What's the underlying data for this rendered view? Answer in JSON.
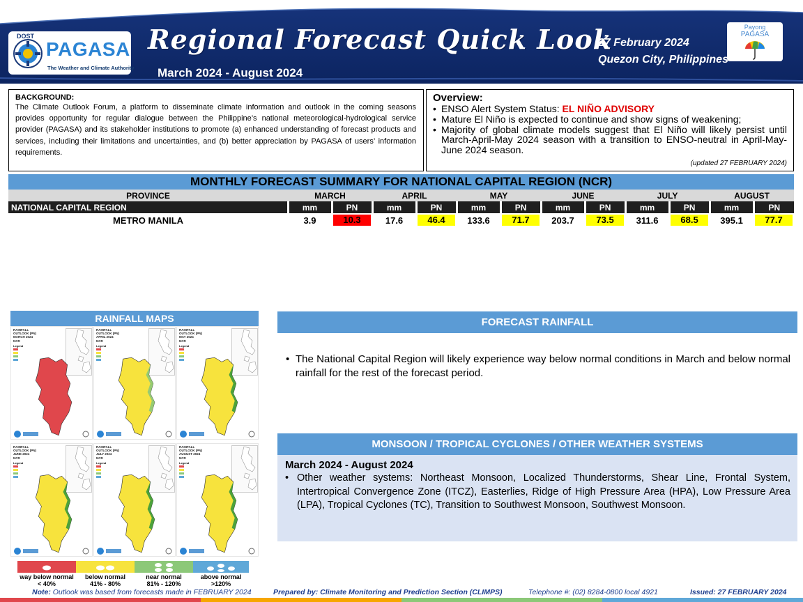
{
  "header": {
    "agency_small": "DOST",
    "agency_name": "PAGASA",
    "agency_tagline": "The Weather and Climate Authority",
    "title": "Regional Forecast Quick Look",
    "period": "March 2024 - August 2024",
    "date": "27 February 2024",
    "place": "Quezon City, Philippines",
    "payong_line1": "Payong",
    "payong_line2": "PAGASA",
    "colors": {
      "navy": "#0e2a6b",
      "accent": "#5b9bd5"
    }
  },
  "background": {
    "heading": "BACKGROUND:",
    "text": "The Climate Outlook Forum, a platform to disseminate climate information and outlook in the coming seasons provides opportunity for regular dialogue between the Philippine’s national meteorological-hydrological service provider (PAGASA) and its stakeholder institutions to promote (a) enhanced understanding of forecast products and services, including their limitations and uncertainties, and (b) better appreciation by PAGASA of users’ information requirements."
  },
  "overview": {
    "heading": "Overview:",
    "enso_prefix": "ENSO Alert System Status: ",
    "enso_status": "EL NIÑO ADVISORY",
    "bullet2": "Mature El Niño is expected to continue and show signs of weakening;",
    "bullet3": "Majority of global climate models suggest that El Niño will likely persist until March-April-May 2024 season with a transition to ENSO-neutral in April-May-June 2024 season.",
    "updated": "(updated 27 FEBRUARY 2024)"
  },
  "summary": {
    "title": "MONTHLY FORECAST SUMMARY FOR NATIONAL CAPITAL REGION (NCR)",
    "province_header": "PROVINCE",
    "region_label": "NATIONAL CAPITAL REGION",
    "mm_label": "mm",
    "pn_label": "PN",
    "months": [
      "MARCH",
      "APRIL",
      "MAY",
      "JUNE",
      "JULY",
      "AUGUST"
    ],
    "rows": [
      {
        "province": "METRO MANILA",
        "cells": [
          {
            "mm": "3.9",
            "pn": "10.3",
            "color": "#ff0000"
          },
          {
            "mm": "17.6",
            "pn": "46.4",
            "color": "#ffff00"
          },
          {
            "mm": "133.6",
            "pn": "71.7",
            "color": "#ffff00"
          },
          {
            "mm": "203.7",
            "pn": "73.5",
            "color": "#ffff00"
          },
          {
            "mm": "311.6",
            "pn": "68.5",
            "color": "#ffff00"
          },
          {
            "mm": "395.1",
            "pn": "77.7",
            "color": "#ffff00"
          }
        ]
      }
    ]
  },
  "maps": {
    "title": "RAINFALL MAPS",
    "panels": [
      {
        "line1": "RAINFALL OUTLOOK (PN)",
        "line2": "MARCH 2024",
        "line3": "NCR",
        "category": "way below normal"
      },
      {
        "line1": "RAINFALL OUTLOOK (PN)",
        "line2": "APRIL 2024",
        "line3": "NCR",
        "category": "below normal"
      },
      {
        "line1": "RAINFALL OUTLOOK (PN)",
        "line2": "MAY 2024",
        "line3": "NCR",
        "category": "below normal"
      },
      {
        "line1": "RAINFALL OUTLOOK (PN)",
        "line2": "JUNE 2024",
        "line3": "NCR",
        "category": "below normal"
      },
      {
        "line1": "RAINFALL OUTLOOK (PN)",
        "line2": "JULY 2024",
        "line3": "NCR",
        "category": "below normal"
      },
      {
        "line1": "RAINFALL OUTLOOK (PN)",
        "line2": "AUGUST 2024",
        "line3": "NCR",
        "category": "below normal"
      }
    ],
    "panel_legend_heading": "Legend",
    "legend": [
      {
        "label": "way below normal",
        "range": "< 40%",
        "color": "#e0474c"
      },
      {
        "label": "below normal",
        "range": "41%  - 80%",
        "color": "#f7e33d"
      },
      {
        "label": "near normal",
        "range": "81% - 120%",
        "color": "#8cc878"
      },
      {
        "label": "above normal",
        "range": ">120%",
        "color": "#5fa8d8"
      }
    ]
  },
  "forecast_rainfall": {
    "title": "FORECAST RAINFALL",
    "text": "The National Capital Region will likely experience way below normal conditions in March and below normal rainfall for the rest of the forecast period."
  },
  "systems": {
    "title": "MONSOON  / TROPICAL CYCLONES / OTHER WEATHER SYSTEMS",
    "period": "March 2024 - August 2024",
    "text": "Other weather systems: Northeast Monsoon, Localized Thunderstorms, Shear Line, Frontal System, Intertropical Convergence Zone (ITCZ), Easterlies, Ridge of High Pressure Area (HPA), Low Pressure Area (LPA), Tropical Cyclones (TC), Transition to Southwest Monsoon, Southwest Monsoon."
  },
  "footer": {
    "note_label": "Note:",
    "note_text": " Outlook was based from forecasts made in FEBRUARY 2024",
    "prepared": "Prepared by: Climate Monitoring and Prediction Section (CLIMPS)",
    "telephone": "Telephone #: (02) 8284-0800 local 4921",
    "issued": "Issued: 27 FEBRUARY 2024"
  }
}
